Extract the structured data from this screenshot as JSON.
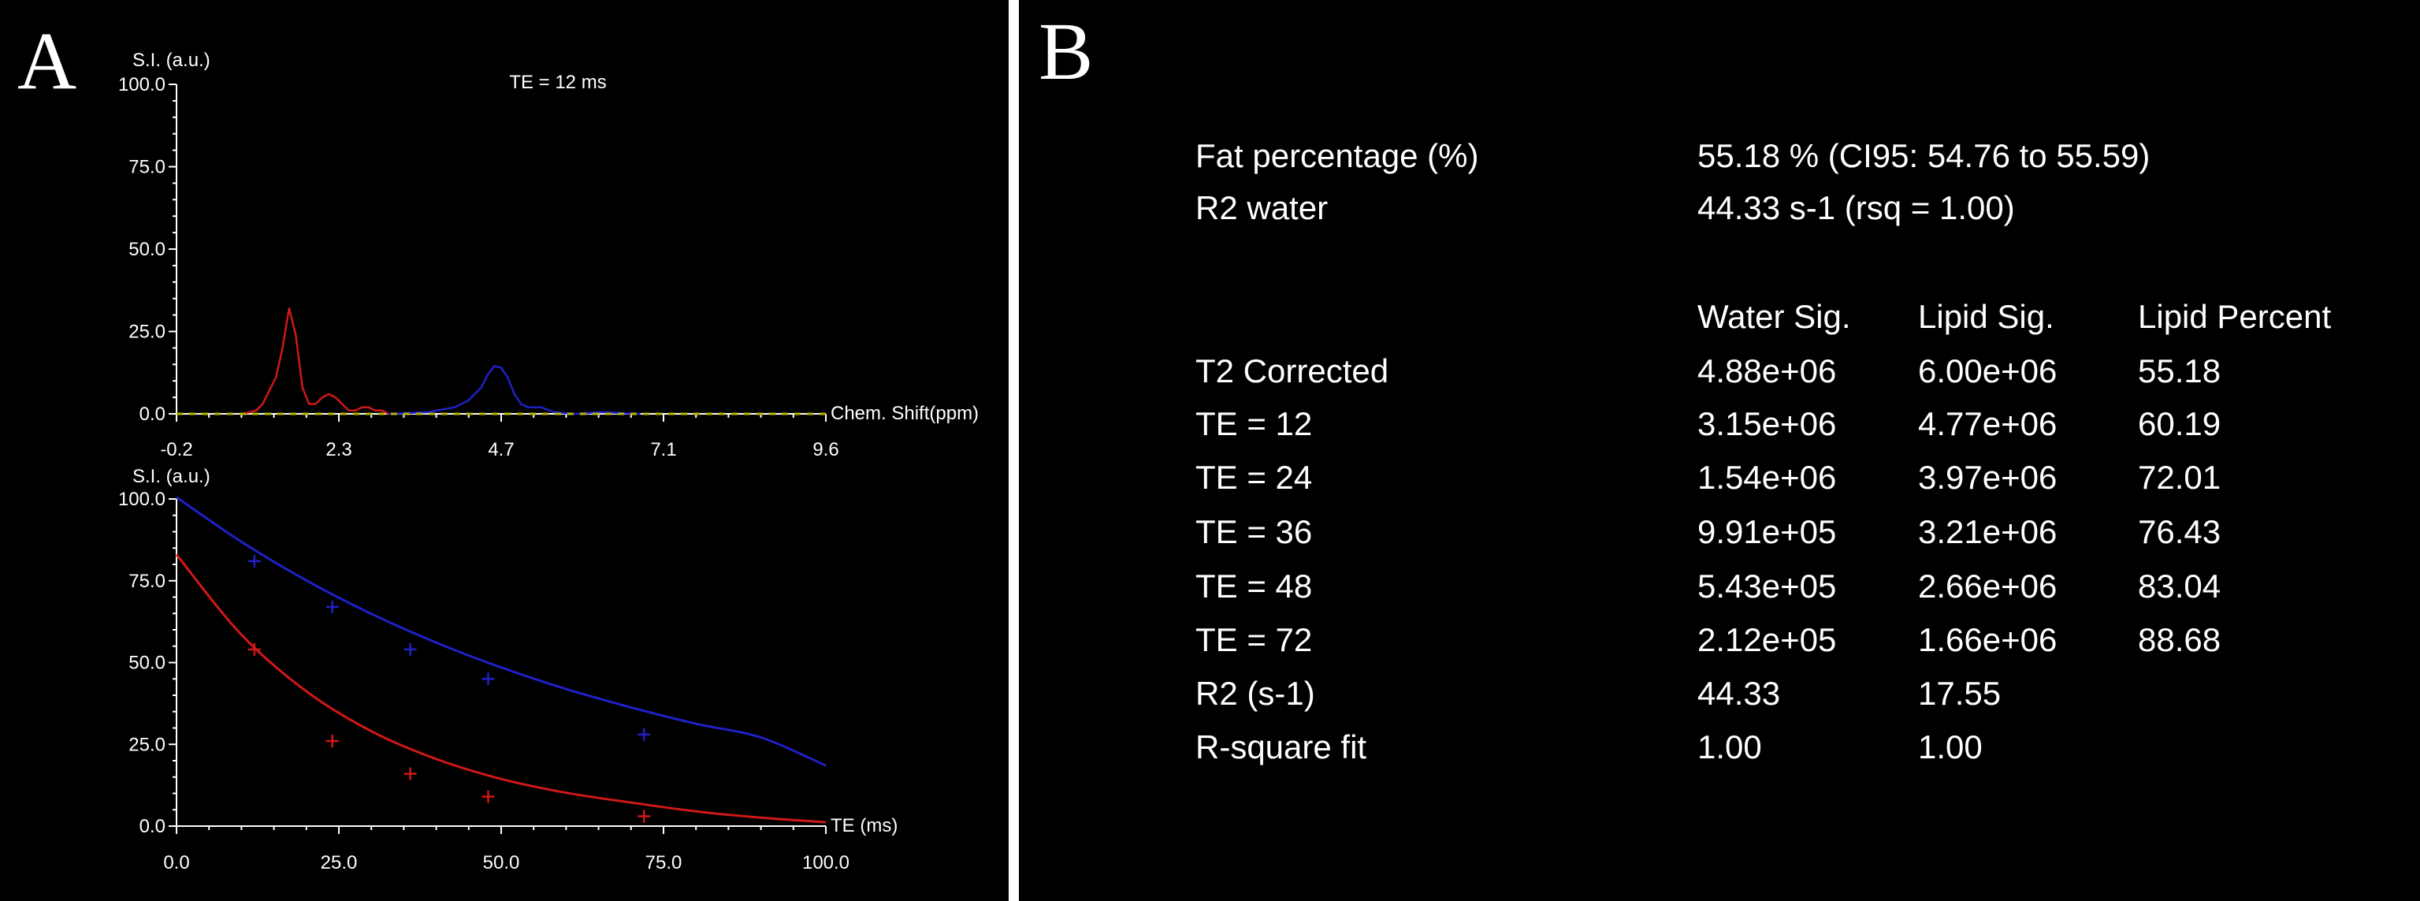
{
  "panel_a": {
    "letter": "A",
    "spectrum_title": "TE = 12 ms",
    "spectrum_ylabel": "S.I. (a.u.)",
    "spectrum_xlabel": "Chem. Shift(ppm)",
    "decay_ylabel": "S.I. (a.u.)",
    "decay_xlabel": "TE (ms)",
    "colors": {
      "lipid": "#d01818",
      "water": "#2020c8",
      "noise": "#b8b800",
      "axis": "#ffffff"
    }
  },
  "panel_b": {
    "letter": "B",
    "summary": [
      {
        "label": "Fat percentage (%)",
        "value": "55.18 % (CI95: 54.76 to 55.59)"
      },
      {
        "label": "R2 water",
        "value": "44.33 s-1 (rsq = 1.00)"
      }
    ],
    "table": {
      "headers": [
        "",
        "Water Sig.",
        "Lipid Sig.",
        "Lipid Percent"
      ],
      "rows": [
        [
          "T2 Corrected",
          "4.88e+06",
          "6.00e+06",
          "55.18"
        ],
        [
          "TE = 12",
          "3.15e+06",
          "4.77e+06",
          "60.19"
        ],
        [
          "TE = 24",
          "1.54e+06",
          "3.97e+06",
          "72.01"
        ],
        [
          "TE = 36",
          "9.91e+05",
          "3.21e+06",
          "76.43"
        ],
        [
          "TE = 48",
          "5.43e+05",
          "2.66e+06",
          "83.04"
        ],
        [
          "TE = 72",
          "2.12e+05",
          "1.66e+06",
          "88.68"
        ],
        [
          "R2 (s-1)",
          "44.33",
          "17.55",
          ""
        ],
        [
          "R-square fit",
          "1.00",
          "1.00",
          ""
        ]
      ]
    }
  },
  "chart_data": [
    {
      "type": "line",
      "title": "TE = 12 ms",
      "xlabel": "Chem. Shift(ppm)",
      "ylabel": "S.I. (a.u.)",
      "xlim": [
        -0.2,
        9.6
      ],
      "ylim": [
        0,
        100
      ],
      "x_ticks": [
        "-0.2",
        "2.3",
        "4.7",
        "7.1",
        "9.6"
      ],
      "y_ticks": [
        "0.0",
        "25.0",
        "50.0",
        "75.0",
        "100.0"
      ],
      "grid": false,
      "series": [
        {
          "color": "#d01818",
          "x": [
            0.8,
            1.0,
            1.1,
            1.2,
            1.3,
            1.4,
            1.5,
            1.6,
            1.7,
            1.8,
            1.9,
            2.0,
            2.1,
            2.2,
            2.3,
            2.4,
            2.5,
            2.6,
            2.7,
            2.8,
            2.9,
            3.0
          ],
          "y": [
            0,
            1,
            3,
            7,
            11,
            20,
            32,
            24,
            8,
            3,
            3,
            5,
            6,
            5,
            3,
            1,
            1,
            2,
            2,
            1,
            1,
            0
          ]
        },
        {
          "color": "#2020c8",
          "x": [
            3.0,
            3.6,
            4.0,
            4.2,
            4.4,
            4.5,
            4.6,
            4.7,
            4.8,
            4.9,
            5.0,
            5.1,
            5.3,
            5.5,
            5.8,
            6.2,
            6.8
          ],
          "y": [
            0,
            0.5,
            2,
            4,
            8,
            12,
            14.5,
            14,
            11,
            6,
            3,
            2,
            2,
            0.5,
            0,
            0.5,
            0
          ]
        },
        {
          "color": "#b8b800",
          "x": [
            -0.2,
            0.8,
            3.0,
            6.8,
            9.6
          ],
          "y": [
            0,
            0,
            0,
            0,
            0
          ]
        }
      ]
    },
    {
      "type": "scatter",
      "xlabel": "TE (ms)",
      "ylabel": "S.I. (a.u.)",
      "xlim": [
        0,
        100
      ],
      "ylim": [
        0,
        100
      ],
      "x_ticks": [
        "0.0",
        "25.0",
        "50.0",
        "75.0",
        "100.0"
      ],
      "y_ticks": [
        "0.0",
        "25.0",
        "50.0",
        "75.0",
        "100.0"
      ],
      "grid": false,
      "series": [
        {
          "color": "#2020c8",
          "points": [
            {
              "x": 12,
              "y": 81
            },
            {
              "x": 24,
              "y": 67
            },
            {
              "x": 36,
              "y": 54
            },
            {
              "x": 48,
              "y": 45
            },
            {
              "x": 72,
              "y": 28
            }
          ],
          "fit": {
            "x": [
              0,
              10,
              20,
              30,
              40,
              50,
              60,
              70,
              80,
              90,
              100
            ],
            "y": [
              100.5,
              86.9,
              75.1,
              64.9,
              56.1,
              48.5,
              41.9,
              36.3,
              31.3,
              27.1,
              18.5
            ]
          }
        },
        {
          "color": "#d01818",
          "points": [
            {
              "x": 12,
              "y": 54
            },
            {
              "x": 24,
              "y": 26
            },
            {
              "x": 36,
              "y": 16
            },
            {
              "x": 48,
              "y": 9
            },
            {
              "x": 72,
              "y": 3
            }
          ],
          "fit": {
            "x": [
              0,
              10,
              20,
              30,
              40,
              50,
              60,
              70,
              80,
              90,
              100
            ],
            "y": [
              83,
              58.5,
              41.2,
              29.0,
              20.5,
              14.4,
              10.2,
              7.2,
              4.5,
              2.6,
              1.2
            ]
          }
        }
      ]
    }
  ]
}
